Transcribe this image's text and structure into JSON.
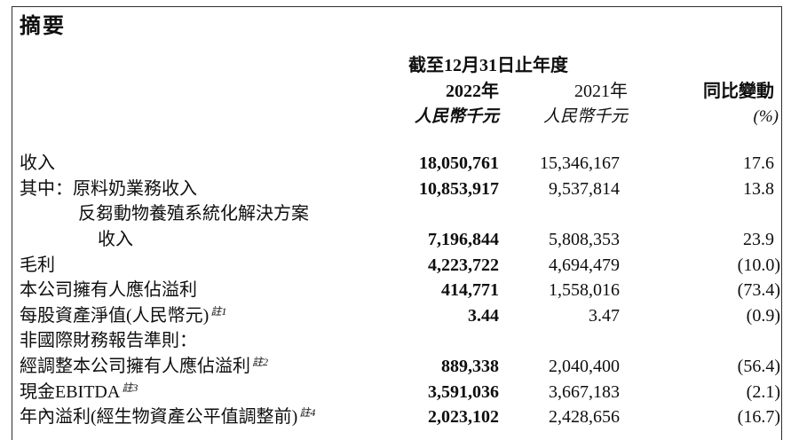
{
  "page": {
    "title": "摘要"
  },
  "table": {
    "header": {
      "period": "截至12月31日止年度",
      "year_2022": "2022年",
      "year_2021": "2021年",
      "yoy": "同比變動",
      "unit_2022": "人民幣千元",
      "unit_2021": "人民幣千元",
      "unit_yoy": "(%)"
    },
    "rows": [
      {
        "label": "收入",
        "v2022": "18,050,761",
        "v2021": "15,346,167",
        "yoy": "17.6"
      },
      {
        "prefix": "其中：",
        "label": "原料奶業務收入",
        "v2022": "10,853,917",
        "v2021": "9,537,814",
        "yoy": "13.8"
      },
      {
        "label": "反芻動物養殖系統化解決方案"
      },
      {
        "label": "收入",
        "v2022": "7,196,844",
        "v2021": "5,808,353",
        "yoy": "23.9"
      },
      {
        "label": "毛利",
        "v2022": "4,223,722",
        "v2021": "4,694,479",
        "yoy": "(10.0)"
      },
      {
        "label": "本公司擁有人應佔溢利",
        "v2022": "414,771",
        "v2021": "1,558,016",
        "yoy": "(73.4)"
      },
      {
        "label": "每股資產淨值(人民幣元)",
        "note": "註1",
        "v2022": "3.44",
        "v2021": "3.47",
        "yoy": "(0.9)"
      },
      {
        "label": "非國際財務報告準則："
      },
      {
        "label": "經調整本公司擁有人應佔溢利",
        "note": "註2",
        "v2022": "889,338",
        "v2021": "2,040,400",
        "yoy": "(56.4)"
      },
      {
        "label": "現金EBITDA",
        "note": "註3",
        "v2022": "3,591,036",
        "v2021": "3,667,183",
        "yoy": "(2.1)"
      },
      {
        "label": "年內溢利(經生物資產公平值調整前)",
        "note": "註4",
        "v2022": "2,023,102",
        "v2021": "2,428,656",
        "yoy": "(16.7)"
      }
    ]
  },
  "colors": {
    "text": "#0e0e0e",
    "border": "#2e2e2e",
    "background": "#ffffff"
  }
}
